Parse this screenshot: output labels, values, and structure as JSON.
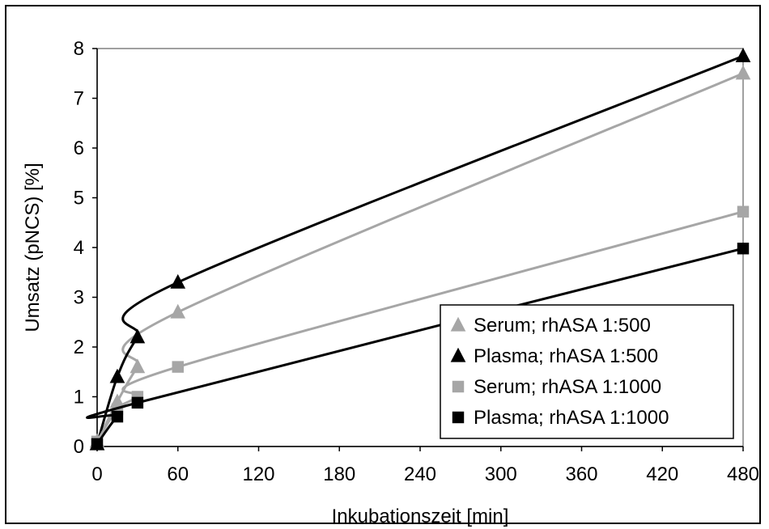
{
  "chart_data": {
    "type": "line",
    "xlabel": "Inkubationszeit [min]",
    "ylabel": "Umsatz (pNCS) [%]",
    "xlim": [
      0,
      480
    ],
    "ylim": [
      0,
      8
    ],
    "xticks": [
      0,
      60,
      120,
      180,
      240,
      300,
      360,
      420,
      480
    ],
    "yticks": [
      0,
      1,
      2,
      3,
      4,
      5,
      6,
      7,
      8
    ],
    "grid": false,
    "legend_position": "bottom-right",
    "x": [
      0,
      15,
      30,
      60,
      480
    ],
    "series": [
      {
        "name": "Serum; rhASA 1:500",
        "marker": "triangle",
        "color": "#a6a6a6",
        "values": [
          0.1,
          0.9,
          1.6,
          2.7,
          7.5
        ]
      },
      {
        "name": "Plasma; rhASA 1:500",
        "marker": "triangle",
        "color": "#000000",
        "values": [
          0.05,
          1.4,
          2.2,
          3.3,
          7.85
        ]
      },
      {
        "name": "Serum; rhASA 1:1000",
        "marker": "square",
        "color": "#a6a6a6",
        "values": [
          0.1,
          0.75,
          1.0,
          1.6,
          4.72
        ]
      },
      {
        "name": "Plasma; rhASA 1:1000",
        "marker": "square",
        "color": "#000000",
        "values": [
          0.05,
          0.6,
          0.88,
          null,
          3.98
        ]
      }
    ]
  }
}
